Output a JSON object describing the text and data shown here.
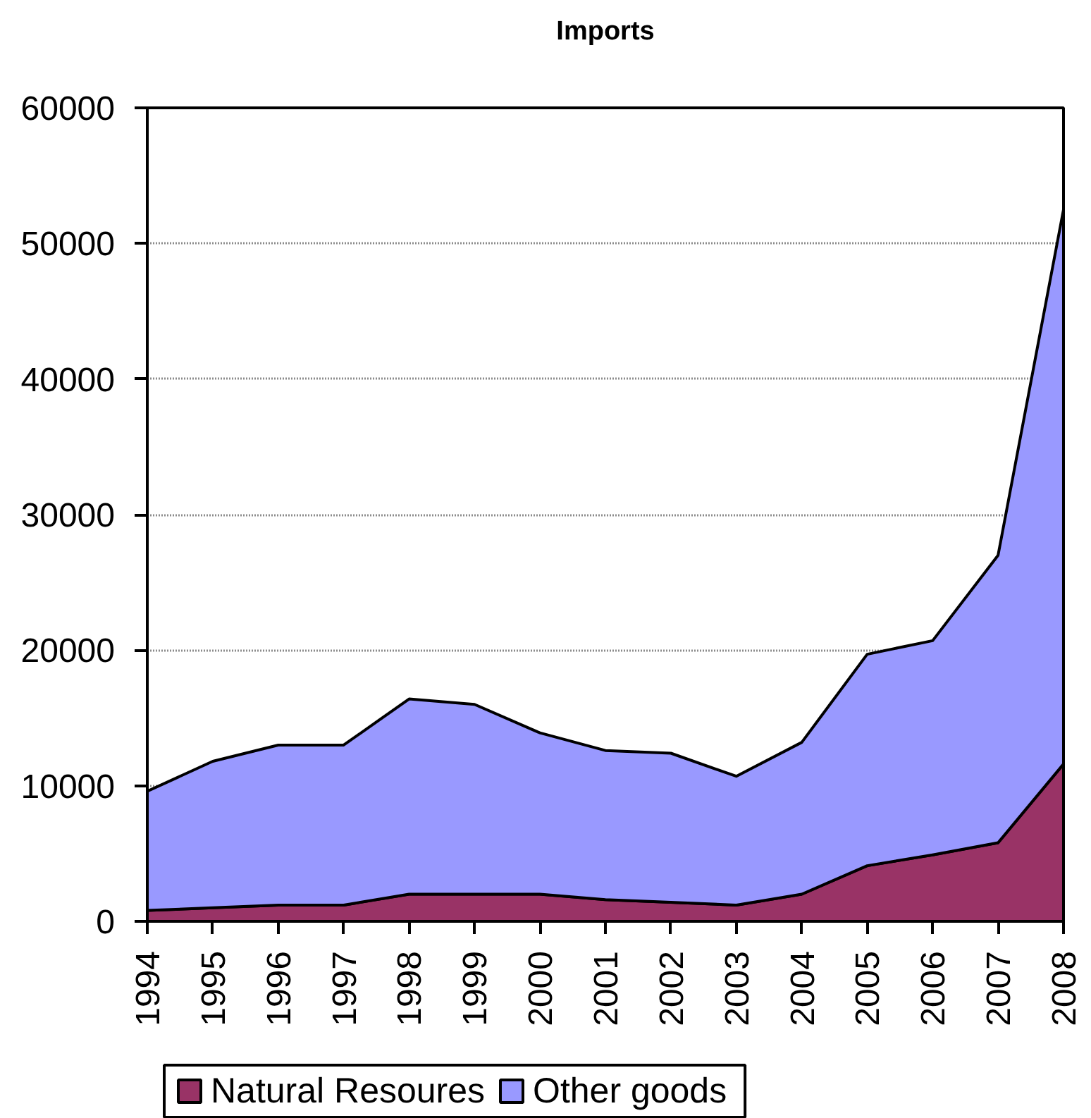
{
  "chart_data": {
    "type": "area",
    "title": "Imports",
    "stacked": true,
    "categories": [
      "1994",
      "1995",
      "1996",
      "1997",
      "1998",
      "1999",
      "2000",
      "2001",
      "2002",
      "2003",
      "2004",
      "2005",
      "2006",
      "2007",
      "2008"
    ],
    "series": [
      {
        "name": "Natural Resoures",
        "color": "#993366",
        "values": [
          800,
          1000,
          1200,
          1200,
          2000,
          2000,
          2000,
          1600,
          1400,
          1200,
          2000,
          4100,
          4900,
          5800,
          11600
        ]
      },
      {
        "name": "Other goods",
        "color": "#9999ff",
        "values": [
          8800,
          10800,
          11800,
          11800,
          14400,
          14000,
          11900,
          11000,
          11000,
          9500,
          11200,
          15600,
          15800,
          21200,
          40900
        ]
      }
    ],
    "ylim": [
      0,
      60000
    ],
    "yticks": [
      0,
      10000,
      20000,
      30000,
      40000,
      50000,
      60000
    ],
    "grid": "y",
    "legend": "bottom"
  }
}
